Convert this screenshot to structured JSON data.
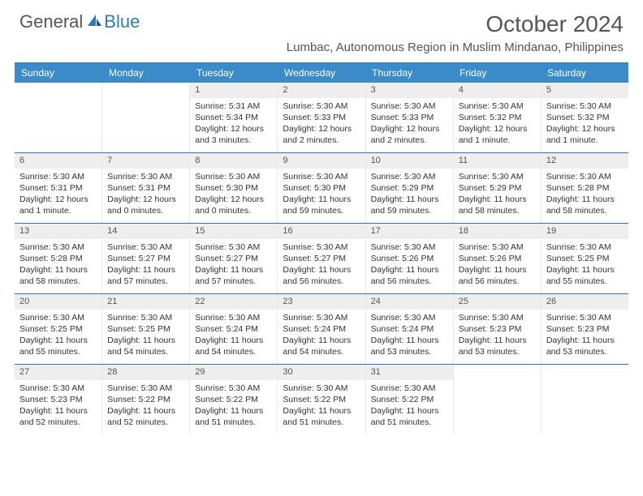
{
  "brand": {
    "part1": "General",
    "part2": "Blue"
  },
  "title": "October 2024",
  "location": "Lumbac, Autonomous Region in Muslim Mindanao, Philippines",
  "colors": {
    "header_bar": "#3b8bc9",
    "rule": "#2d7bbd",
    "daynum_bg": "#eeeeee",
    "text": "#333333",
    "brand_gray": "#555555",
    "brand_blue": "#2d7bbd"
  },
  "dow": [
    "Sunday",
    "Monday",
    "Tuesday",
    "Wednesday",
    "Thursday",
    "Friday",
    "Saturday"
  ],
  "weeks": [
    [
      {
        "n": "",
        "sunrise": "",
        "sunset": "",
        "daylight": ""
      },
      {
        "n": "",
        "sunrise": "",
        "sunset": "",
        "daylight": ""
      },
      {
        "n": "1",
        "sunrise": "Sunrise: 5:31 AM",
        "sunset": "Sunset: 5:34 PM",
        "daylight": "Daylight: 12 hours and 3 minutes."
      },
      {
        "n": "2",
        "sunrise": "Sunrise: 5:30 AM",
        "sunset": "Sunset: 5:33 PM",
        "daylight": "Daylight: 12 hours and 2 minutes."
      },
      {
        "n": "3",
        "sunrise": "Sunrise: 5:30 AM",
        "sunset": "Sunset: 5:33 PM",
        "daylight": "Daylight: 12 hours and 2 minutes."
      },
      {
        "n": "4",
        "sunrise": "Sunrise: 5:30 AM",
        "sunset": "Sunset: 5:32 PM",
        "daylight": "Daylight: 12 hours and 1 minute."
      },
      {
        "n": "5",
        "sunrise": "Sunrise: 5:30 AM",
        "sunset": "Sunset: 5:32 PM",
        "daylight": "Daylight: 12 hours and 1 minute."
      }
    ],
    [
      {
        "n": "6",
        "sunrise": "Sunrise: 5:30 AM",
        "sunset": "Sunset: 5:31 PM",
        "daylight": "Daylight: 12 hours and 1 minute."
      },
      {
        "n": "7",
        "sunrise": "Sunrise: 5:30 AM",
        "sunset": "Sunset: 5:31 PM",
        "daylight": "Daylight: 12 hours and 0 minutes."
      },
      {
        "n": "8",
        "sunrise": "Sunrise: 5:30 AM",
        "sunset": "Sunset: 5:30 PM",
        "daylight": "Daylight: 12 hours and 0 minutes."
      },
      {
        "n": "9",
        "sunrise": "Sunrise: 5:30 AM",
        "sunset": "Sunset: 5:30 PM",
        "daylight": "Daylight: 11 hours and 59 minutes."
      },
      {
        "n": "10",
        "sunrise": "Sunrise: 5:30 AM",
        "sunset": "Sunset: 5:29 PM",
        "daylight": "Daylight: 11 hours and 59 minutes."
      },
      {
        "n": "11",
        "sunrise": "Sunrise: 5:30 AM",
        "sunset": "Sunset: 5:29 PM",
        "daylight": "Daylight: 11 hours and 58 minutes."
      },
      {
        "n": "12",
        "sunrise": "Sunrise: 5:30 AM",
        "sunset": "Sunset: 5:28 PM",
        "daylight": "Daylight: 11 hours and 58 minutes."
      }
    ],
    [
      {
        "n": "13",
        "sunrise": "Sunrise: 5:30 AM",
        "sunset": "Sunset: 5:28 PM",
        "daylight": "Daylight: 11 hours and 58 minutes."
      },
      {
        "n": "14",
        "sunrise": "Sunrise: 5:30 AM",
        "sunset": "Sunset: 5:27 PM",
        "daylight": "Daylight: 11 hours and 57 minutes."
      },
      {
        "n": "15",
        "sunrise": "Sunrise: 5:30 AM",
        "sunset": "Sunset: 5:27 PM",
        "daylight": "Daylight: 11 hours and 57 minutes."
      },
      {
        "n": "16",
        "sunrise": "Sunrise: 5:30 AM",
        "sunset": "Sunset: 5:27 PM",
        "daylight": "Daylight: 11 hours and 56 minutes."
      },
      {
        "n": "17",
        "sunrise": "Sunrise: 5:30 AM",
        "sunset": "Sunset: 5:26 PM",
        "daylight": "Daylight: 11 hours and 56 minutes."
      },
      {
        "n": "18",
        "sunrise": "Sunrise: 5:30 AM",
        "sunset": "Sunset: 5:26 PM",
        "daylight": "Daylight: 11 hours and 56 minutes."
      },
      {
        "n": "19",
        "sunrise": "Sunrise: 5:30 AM",
        "sunset": "Sunset: 5:25 PM",
        "daylight": "Daylight: 11 hours and 55 minutes."
      }
    ],
    [
      {
        "n": "20",
        "sunrise": "Sunrise: 5:30 AM",
        "sunset": "Sunset: 5:25 PM",
        "daylight": "Daylight: 11 hours and 55 minutes."
      },
      {
        "n": "21",
        "sunrise": "Sunrise: 5:30 AM",
        "sunset": "Sunset: 5:25 PM",
        "daylight": "Daylight: 11 hours and 54 minutes."
      },
      {
        "n": "22",
        "sunrise": "Sunrise: 5:30 AM",
        "sunset": "Sunset: 5:24 PM",
        "daylight": "Daylight: 11 hours and 54 minutes."
      },
      {
        "n": "23",
        "sunrise": "Sunrise: 5:30 AM",
        "sunset": "Sunset: 5:24 PM",
        "daylight": "Daylight: 11 hours and 54 minutes."
      },
      {
        "n": "24",
        "sunrise": "Sunrise: 5:30 AM",
        "sunset": "Sunset: 5:24 PM",
        "daylight": "Daylight: 11 hours and 53 minutes."
      },
      {
        "n": "25",
        "sunrise": "Sunrise: 5:30 AM",
        "sunset": "Sunset: 5:23 PM",
        "daylight": "Daylight: 11 hours and 53 minutes."
      },
      {
        "n": "26",
        "sunrise": "Sunrise: 5:30 AM",
        "sunset": "Sunset: 5:23 PM",
        "daylight": "Daylight: 11 hours and 53 minutes."
      }
    ],
    [
      {
        "n": "27",
        "sunrise": "Sunrise: 5:30 AM",
        "sunset": "Sunset: 5:23 PM",
        "daylight": "Daylight: 11 hours and 52 minutes."
      },
      {
        "n": "28",
        "sunrise": "Sunrise: 5:30 AM",
        "sunset": "Sunset: 5:22 PM",
        "daylight": "Daylight: 11 hours and 52 minutes."
      },
      {
        "n": "29",
        "sunrise": "Sunrise: 5:30 AM",
        "sunset": "Sunset: 5:22 PM",
        "daylight": "Daylight: 11 hours and 51 minutes."
      },
      {
        "n": "30",
        "sunrise": "Sunrise: 5:30 AM",
        "sunset": "Sunset: 5:22 PM",
        "daylight": "Daylight: 11 hours and 51 minutes."
      },
      {
        "n": "31",
        "sunrise": "Sunrise: 5:30 AM",
        "sunset": "Sunset: 5:22 PM",
        "daylight": "Daylight: 11 hours and 51 minutes."
      },
      {
        "n": "",
        "sunrise": "",
        "sunset": "",
        "daylight": ""
      },
      {
        "n": "",
        "sunrise": "",
        "sunset": "",
        "daylight": ""
      }
    ]
  ]
}
